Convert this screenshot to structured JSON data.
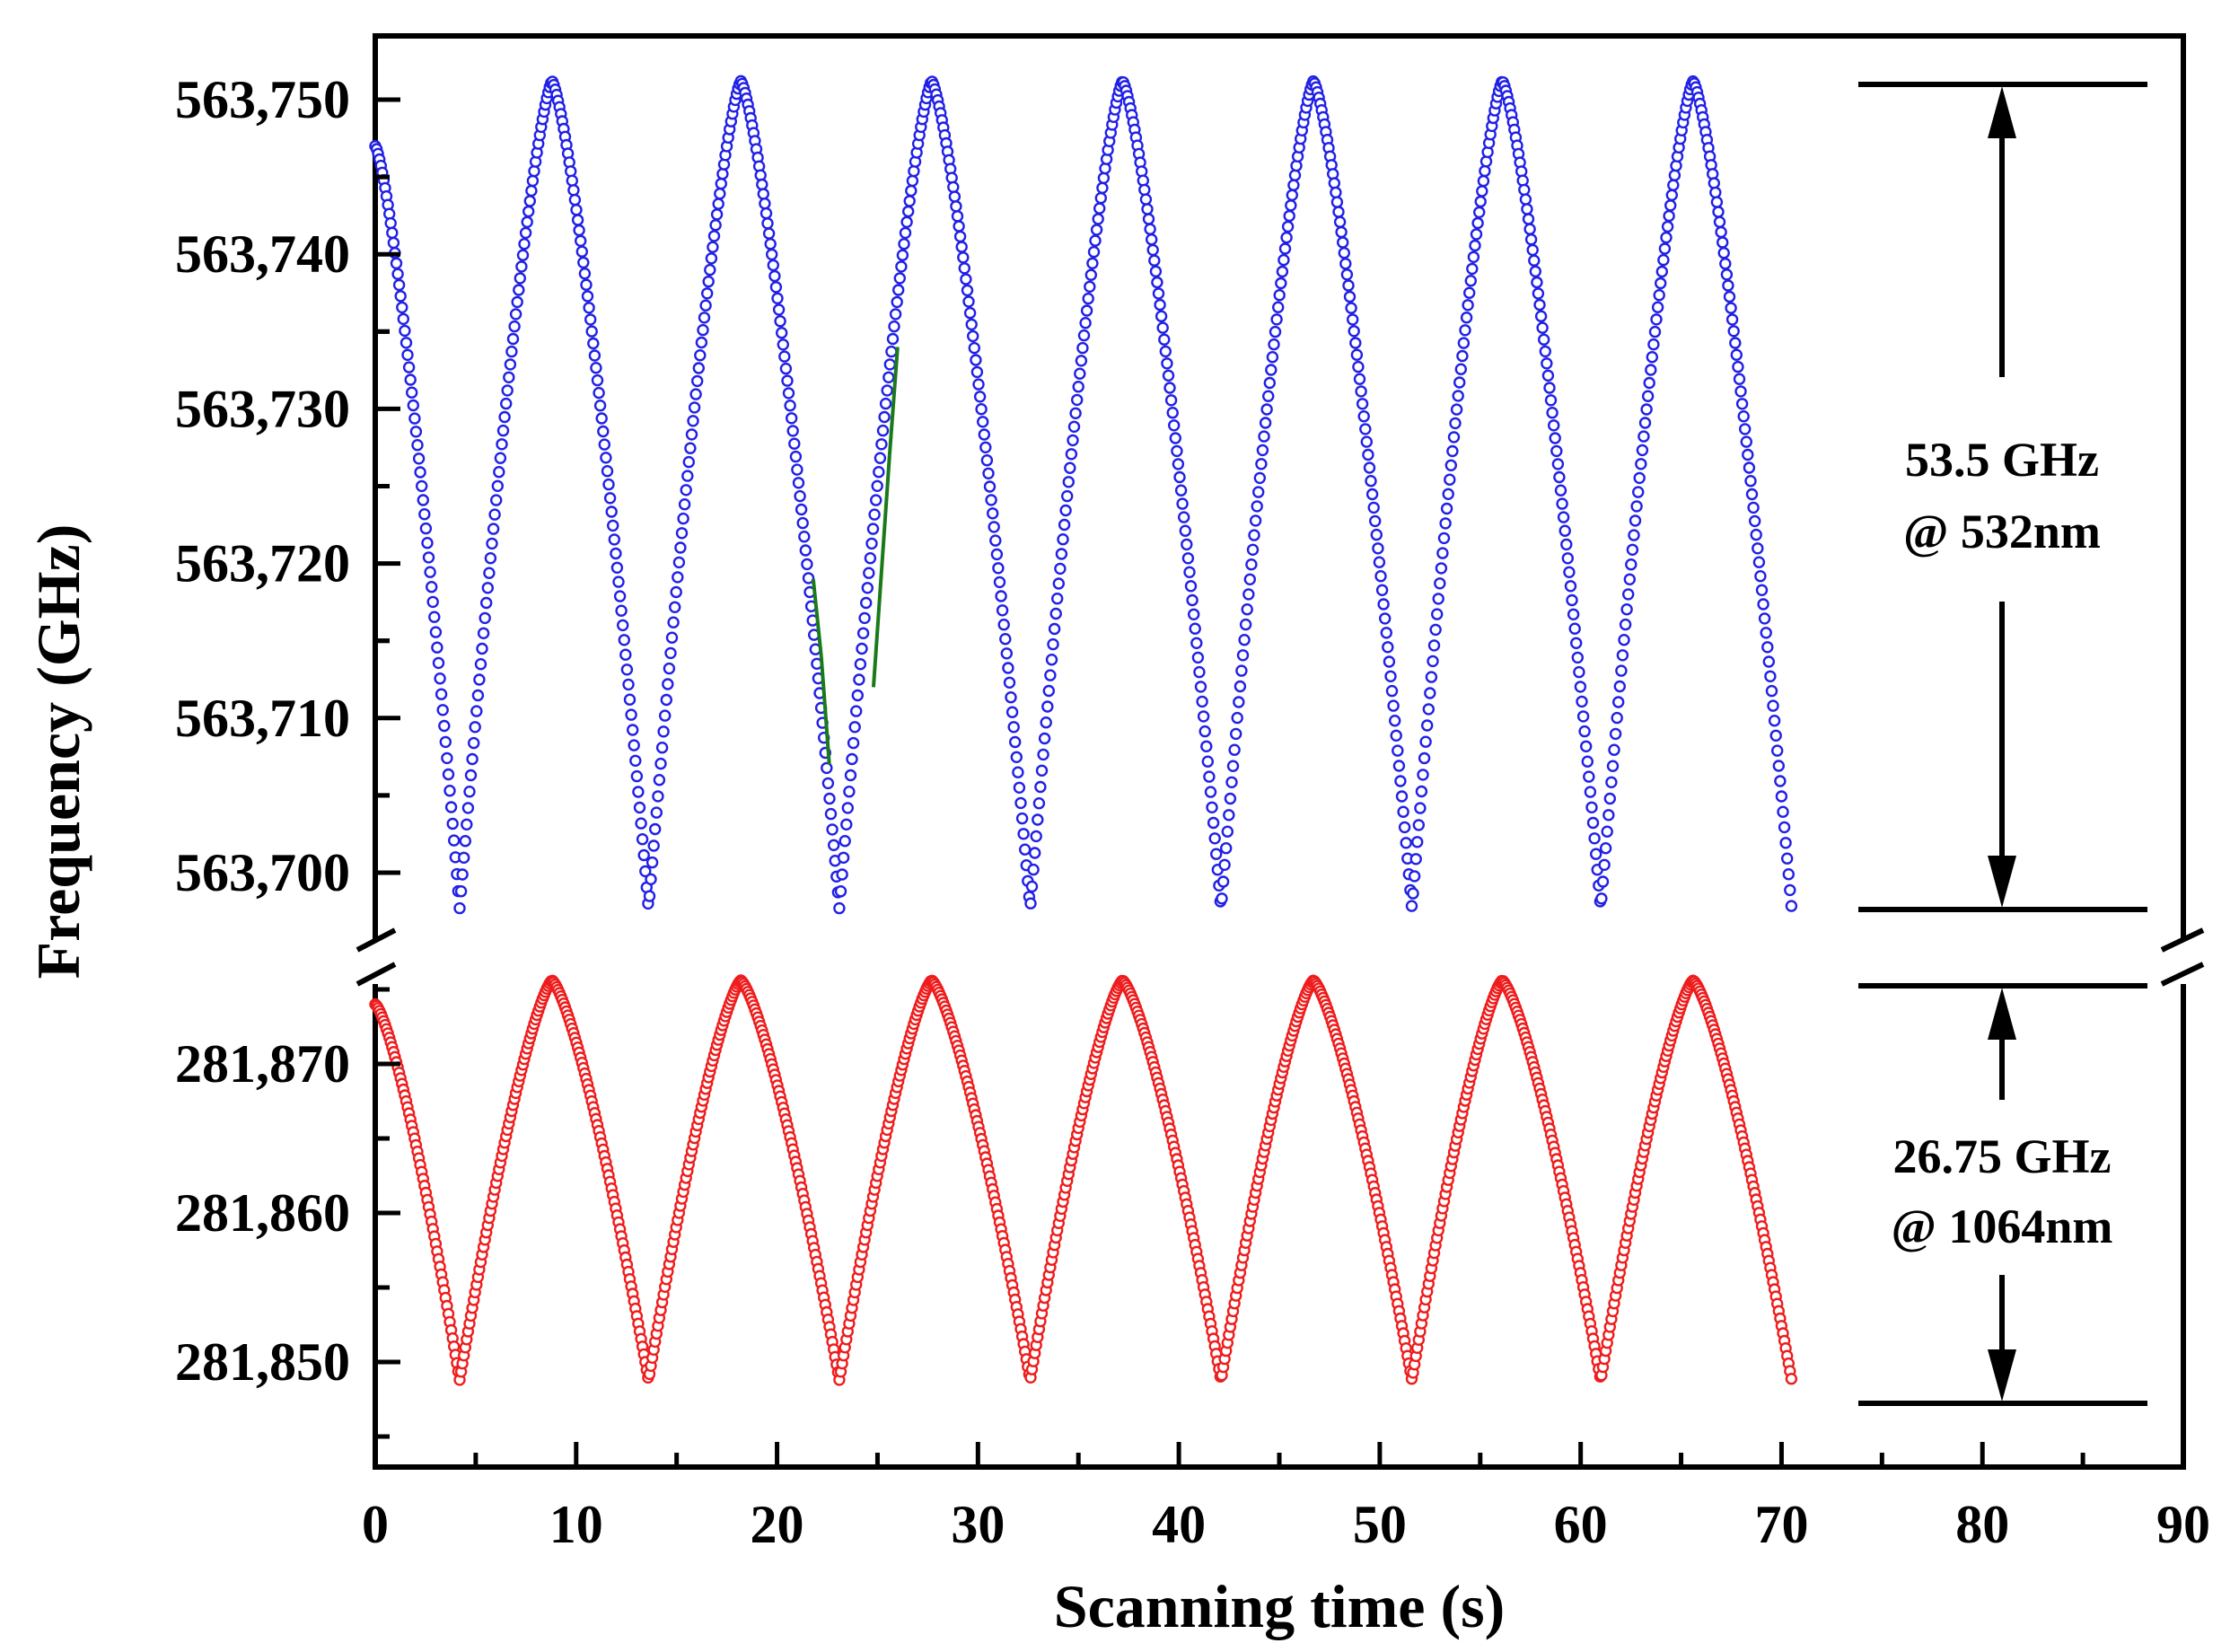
{
  "chart_data": {
    "type": "scatter",
    "title": "",
    "xlabel": "Scanning time (s)",
    "ylabel": "Frequency (GHz)",
    "xlim": [
      0,
      90
    ],
    "x_ticks": [
      "0",
      "10",
      "20",
      "30",
      "40",
      "50",
      "60",
      "70",
      "80",
      "90"
    ],
    "grid": false,
    "legend": "none",
    "axis_break": "y-axis broken between the two panels",
    "panels": [
      {
        "name": "532nm",
        "color": "#2020e6",
        "ylim": [
          563695,
          563754
        ],
        "y_ticks": [
          "563,700",
          "563,710",
          "563,720",
          "563,730",
          "563,740",
          "563,750"
        ],
        "y_tick_values": [
          563700,
          563710,
          563720,
          563730,
          563740,
          563750
        ],
        "peak_times": [
          8.8,
          18.2,
          27.7,
          37.2,
          46.7,
          56.1,
          65.6
        ],
        "trough_times": [
          4.2,
          13.6,
          23.1,
          32.6,
          42.1,
          51.6,
          61.0,
          70.5
        ],
        "start": [
          0,
          563747
        ],
        "end": [
          70.5,
          563697.7
        ],
        "max": 563751.2,
        "min": 563697.7,
        "outlier_color": "#1a7a1a",
        "outlier_segments": [
          [
            21.8,
            563719
          ],
          [
            22.2,
            563714
          ],
          [
            22.6,
            563707
          ],
          [
            24.8,
            563712
          ],
          [
            25.6,
            563727
          ],
          [
            26.0,
            563734
          ]
        ]
      },
      {
        "name": "1064nm",
        "color": "#ee1c1c",
        "ylim": [
          281844,
          281878
        ],
        "y_ticks": [
          "281,850",
          "281,860",
          "281,870"
        ],
        "y_tick_values": [
          281850,
          281860,
          281870
        ],
        "peak_times": [
          8.8,
          18.2,
          27.7,
          37.2,
          46.7,
          56.1,
          65.6
        ],
        "trough_times": [
          4.2,
          13.6,
          23.1,
          32.6,
          42.1,
          51.6,
          61.0,
          70.5
        ],
        "start": [
          0,
          281874
        ],
        "end": [
          70.5,
          281848.8
        ],
        "max": 281875.6,
        "min": 281848.8
      }
    ],
    "annotations": [
      {
        "line1": "53.5 GHz",
        "line2": "@ 532nm"
      },
      {
        "line1": "26.75 GHz",
        "line2": "@ 1064nm"
      }
    ]
  }
}
